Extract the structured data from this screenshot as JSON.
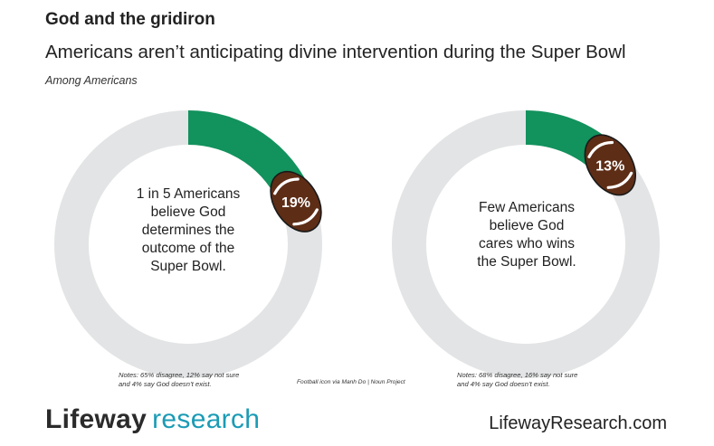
{
  "header": {
    "title": "God and the gridiron",
    "subtitle": "Americans aren’t anticipating divine intervention during the Super Bowl",
    "population": "Among Americans"
  },
  "colors": {
    "agree": "#12925d",
    "remainder": "#e3e4e5",
    "football": "#5e2d16",
    "football_outline": "#1a1a1a",
    "lace": "#ffffff",
    "brand_accent": "#1b9bb5"
  },
  "chart_data": [
    {
      "type": "pie",
      "value": 19,
      "max": 100,
      "value_label": "19%",
      "center_text": [
        "1 in 5 Americans",
        "believe God",
        "determines the",
        "outcome of the",
        "Super Bowl."
      ],
      "note": [
        "Notes: 65% disagree, 12% say not sure",
        "and 4% say God doesn’t exist."
      ]
    },
    {
      "type": "pie",
      "value": 13,
      "max": 100,
      "value_label": "13%",
      "center_text": [
        "Few Americans",
        "believe God",
        "cares who wins",
        "the Super Bowl."
      ],
      "note": [
        "Notes: 68% disagree, 16% say not sure",
        "and 4% say God doesn’t exist."
      ]
    }
  ],
  "footer": {
    "icon_credit": "Football icon via Manh Do | Noun Project",
    "logo_brand": "Lifeway",
    "logo_suffix": "research",
    "website": "LifewayResearch.com"
  }
}
